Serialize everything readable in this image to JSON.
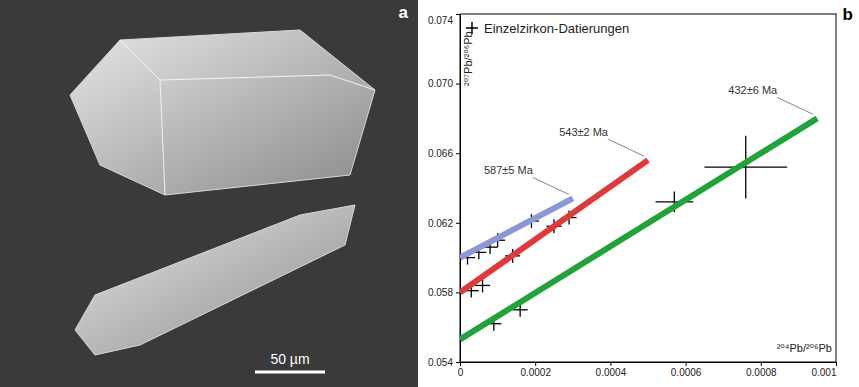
{
  "panel_a": {
    "label": "a",
    "scale_bar": "50 µm"
  },
  "chart_data": {
    "type": "scatter",
    "panel_label": "b",
    "x_label": "²⁰⁴Pb/²⁰⁶Pb",
    "y_label": "²⁰⁷Pb/²⁰⁶Pb",
    "xlim": [
      0,
      0.001
    ],
    "ylim": [
      0.054,
      0.074
    ],
    "xticks": [
      0,
      0.0002,
      0.0004,
      0.0006,
      0.0008,
      0.001
    ],
    "yticks": [
      0.054,
      0.058,
      0.062,
      0.066,
      {
        "value": 0.07,
        "label": "0.070"
      },
      0.074
    ],
    "grid": false,
    "legend": "upper left",
    "series": [
      {
        "name": "Einzelzirkon-Datierungen",
        "type": "scatter",
        "marker": "cross",
        "color": "#000000",
        "x": [
          2e-05,
          5e-05,
          8e-05,
          0.0001,
          0.00019,
          3e-05,
          6e-05,
          0.00014,
          0.00025,
          0.00029,
          9e-05,
          0.00016,
          0.00057,
          0.00076
        ],
        "values": [
          0.06,
          0.0603,
          0.0606,
          0.061,
          0.0621,
          0.0581,
          0.0584,
          0.0601,
          0.0618,
          0.0623,
          0.0562,
          0.057,
          0.0632,
          0.0652
        ],
        "x_error": [
          2e-05,
          2e-05,
          2e-05,
          2e-05,
          2e-05,
          2e-05,
          2e-05,
          2e-05,
          2e-05,
          2e-05,
          2e-05,
          2e-05,
          5e-05,
          0.00011
        ],
        "y_error": [
          0.0004,
          0.0004,
          0.0004,
          0.0004,
          0.0004,
          0.0004,
          0.0004,
          0.0004,
          0.0004,
          0.0004,
          0.0004,
          0.0004,
          0.0006,
          0.0018
        ]
      },
      {
        "name": "587±5 Ma",
        "type": "line",
        "color": "#8c97d6",
        "x": [
          0,
          0.0003
        ],
        "values": [
          0.06,
          0.0634
        ]
      },
      {
        "name": "543±2 Ma",
        "type": "line",
        "color": "#e0393a",
        "x": [
          0,
          0.0005
        ],
        "values": [
          0.058,
          0.0656
        ]
      },
      {
        "name": "432±6 Ma",
        "type": "line",
        "color": "#22a33a",
        "x": [
          0,
          0.00095
        ],
        "values": [
          0.0553,
          0.068
        ]
      }
    ]
  }
}
